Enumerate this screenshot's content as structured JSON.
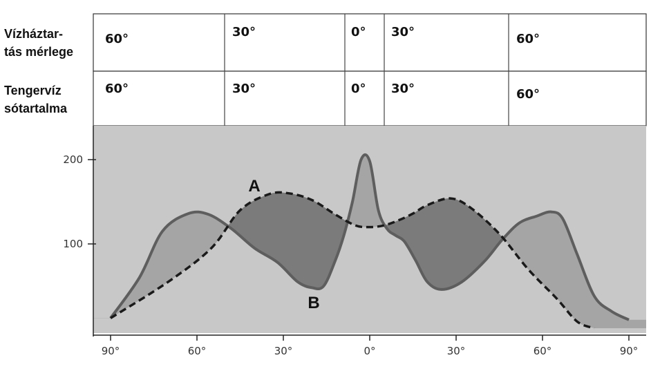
{
  "table": {
    "rows": [
      {
        "label_lines": [
          "Vízháztar-",
          "tás mérlege"
        ],
        "cells": [
          "60°",
          "30°",
          "0°",
          "30°",
          "60°"
        ]
      },
      {
        "label_lines": [
          "Tengervíz",
          "sótartalma"
        ],
        "cells": [
          "60°",
          "30°",
          "0°",
          "30°",
          "60°"
        ]
      }
    ]
  },
  "chart_data": {
    "type": "line",
    "x_ticks": [
      "90°",
      "60°",
      "30°",
      "0°",
      "30°",
      "60°",
      "90°"
    ],
    "y_ticks": [
      "100",
      "200"
    ],
    "xlim": [
      -90,
      90
    ],
    "ylim": [
      0,
      250
    ],
    "series": [
      {
        "name": "A",
        "style": "dashed",
        "x": [
          -90,
          -70,
          -55,
          -45,
          -35,
          -28,
          -20,
          -12,
          -5,
          0,
          5,
          10,
          15,
          20,
          28,
          35,
          45,
          55,
          65,
          72,
          78
        ],
        "y": [
          12,
          55,
          95,
          140,
          159,
          160,
          152,
          135,
          122,
          120,
          122,
          128,
          136,
          146,
          154,
          143,
          112,
          70,
          35,
          8,
          0
        ]
      },
      {
        "name": "B",
        "style": "solid",
        "x": [
          -90,
          -80,
          -72,
          -63,
          -56,
          -48,
          -40,
          -32,
          -25,
          -20,
          -16,
          -12,
          -9,
          -6,
          -3,
          0,
          3,
          6,
          9,
          12,
          16,
          20,
          25,
          32,
          40,
          46,
          52,
          58,
          63,
          67,
          72,
          78,
          84,
          90
        ],
        "y": [
          12,
          60,
          115,
          136,
          135,
          118,
          95,
          78,
          55,
          48,
          50,
          80,
          110,
          150,
          200,
          198,
          140,
          118,
          110,
          103,
          80,
          55,
          46,
          55,
          80,
          105,
          125,
          133,
          138,
          130,
          88,
          38,
          20,
          10
        ]
      }
    ],
    "colors": {
      "plot_bg": "#c8c8c8",
      "fill_b_above": "#a5a5a5",
      "fill_a_above": "#7b7b7b",
      "line": "#5e5e5e",
      "dashed": "#1a1a1a"
    },
    "grid": false
  }
}
